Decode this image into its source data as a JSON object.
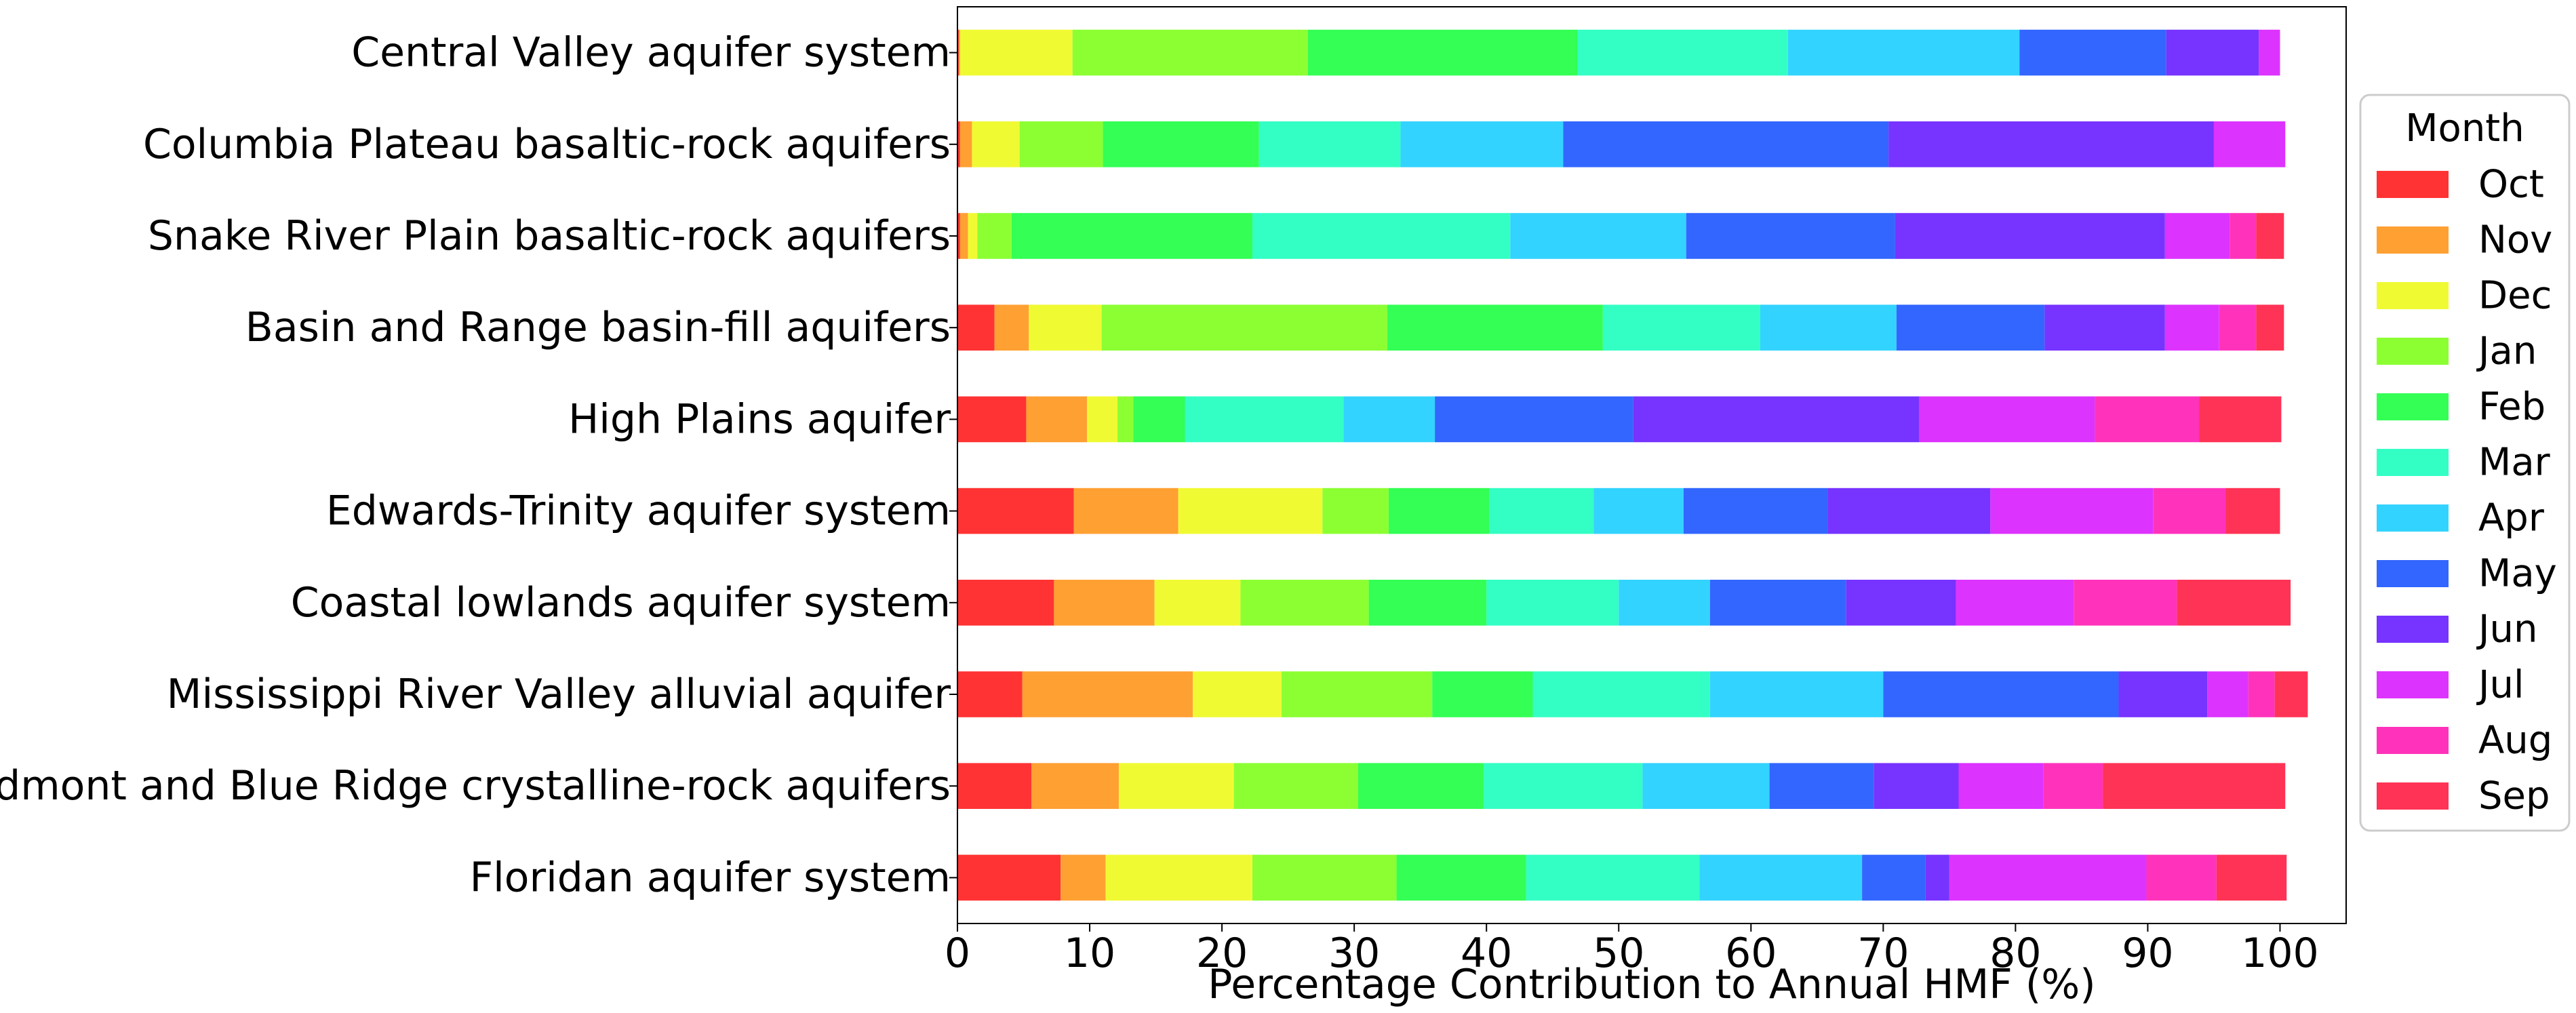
{
  "chart_data": {
    "type": "bar",
    "orientation": "horizontal",
    "stacked": true,
    "title": "",
    "xlabel": "Percentage Contribution to Annual HMF (%)",
    "ylabel": "",
    "xlim": [
      0,
      105
    ],
    "xticks": [
      0,
      10,
      20,
      30,
      40,
      50,
      60,
      70,
      80,
      90,
      100
    ],
    "grid": false,
    "legend": {
      "title": "Month",
      "placement": "right"
    },
    "categories": [
      "Central Valley aquifer system",
      "Columbia Plateau basaltic-rock aquifers",
      "Snake River Plain basaltic-rock aquifers",
      "Basin and Range basin-fill aquifers",
      "High Plains aquifer",
      "Edwards-Trinity aquifer system",
      "Coastal lowlands aquifer system",
      "Mississippi River Valley alluvial aquifer",
      "Piedmont and Blue Ridge crystalline-rock aquifers",
      "Floridan aquifer system"
    ],
    "series": [
      {
        "name": "Oct",
        "color": "#ff3333",
        "values": [
          0.1,
          0.2,
          0.2,
          2.8,
          5.2,
          8.8,
          7.3,
          4.9,
          5.6,
          7.8
        ]
      },
      {
        "name": "Nov",
        "color": "#ffa033",
        "values": [
          0.1,
          0.9,
          0.6,
          2.6,
          4.6,
          7.9,
          7.6,
          12.9,
          6.6,
          3.4
        ]
      },
      {
        "name": "Dec",
        "color": "#f0fa33",
        "values": [
          8.5,
          3.6,
          0.7,
          5.5,
          2.3,
          10.9,
          6.5,
          6.7,
          8.7,
          11.1
        ]
      },
      {
        "name": "Jan",
        "color": "#8cff33",
        "values": [
          17.8,
          6.3,
          2.6,
          21.6,
          1.2,
          5.0,
          9.7,
          11.4,
          9.4,
          10.9
        ]
      },
      {
        "name": "Feb",
        "color": "#33ff55",
        "values": [
          20.4,
          11.8,
          18.2,
          16.3,
          3.9,
          7.6,
          8.9,
          7.6,
          9.5,
          9.8
        ]
      },
      {
        "name": "Mar",
        "color": "#33ffc4",
        "values": [
          15.9,
          10.7,
          19.5,
          11.9,
          12.0,
          7.9,
          10.0,
          13.4,
          12.0,
          13.1
        ]
      },
      {
        "name": "Apr",
        "color": "#33d3ff",
        "values": [
          17.5,
          12.3,
          13.3,
          10.3,
          6.9,
          6.8,
          6.9,
          13.1,
          9.6,
          12.3
        ]
      },
      {
        "name": "May",
        "color": "#3366ff",
        "values": [
          11.1,
          24.6,
          15.8,
          11.2,
          15.0,
          10.9,
          10.3,
          17.8,
          7.9,
          4.8
        ]
      },
      {
        "name": "Jun",
        "color": "#7733ff",
        "values": [
          7.0,
          24.6,
          20.4,
          9.1,
          21.6,
          12.3,
          8.3,
          6.7,
          6.4,
          1.8
        ]
      },
      {
        "name": "Jul",
        "color": "#dd33ff",
        "values": [
          1.6,
          5.4,
          4.9,
          4.1,
          13.3,
          12.3,
          8.9,
          3.1,
          6.4,
          14.9
        ]
      },
      {
        "name": "Aug",
        "color": "#ff33bb",
        "values": [
          0.0,
          0.0,
          2.0,
          2.8,
          7.9,
          5.5,
          7.8,
          2.0,
          4.5,
          5.3
        ]
      },
      {
        "name": "Sep",
        "color": "#ff3355",
        "values": [
          0.0,
          0.0,
          2.1,
          2.1,
          6.2,
          4.1,
          8.6,
          2.5,
          13.8,
          5.3
        ]
      }
    ]
  }
}
